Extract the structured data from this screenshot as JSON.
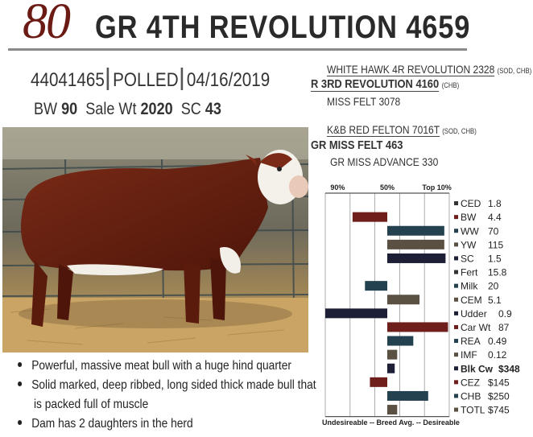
{
  "header": {
    "lot_number": "80",
    "bull_name": "GR  4TH REVOLUTION 4659",
    "registration": "44041465",
    "polled": "POLLED",
    "birth_date": "04/16/2019"
  },
  "stats": {
    "bw_label": "BW",
    "bw_value": "90",
    "sale_wt_label": "Sale Wt",
    "sale_wt_value": "2020",
    "sc_label": "SC",
    "sc_value": "43"
  },
  "pedigree": {
    "sire_sire": "WHITE HAWK 4R REVOLUTION 2328",
    "sire_sire_tags": "(SOD, CHB)",
    "sire": "R 3RD REVOLUTION 4160",
    "sire_tags": "(CHB)",
    "sire_dam": "MISS FELT 3078",
    "dam_sire": "K&B RED FELTON 7016T",
    "dam_sire_tags": "(SOD, CHB)",
    "dam": "GR MISS FELT 463",
    "dam_dam": "GR MISS ADVANCE 330"
  },
  "bullets": [
    "Powerful, massive meat bull with a huge hind quarter",
    "Solid marked, deep ribbed, long sided thick made bull that",
    "is packed full of muscle",
    "Dam has 2 daughters in the herd"
  ],
  "colors": {
    "lot": "#6b1a14",
    "bar_red": "#6e1f1c",
    "bar_teal": "#23414f",
    "bar_olive": "#5a5142",
    "bar_navy": "#1c1f35"
  },
  "chart_data": {
    "type": "bar",
    "orientation": "horizontal",
    "top_labels": [
      "90%",
      "50%",
      "Top 10%"
    ],
    "bottom_label": "Undesireable -- Breed Avg. -- Desireable",
    "grid": true,
    "traits": [
      {
        "name": "CED",
        "value": "1.8",
        "rank": 50,
        "color": "none"
      },
      {
        "name": "BW",
        "value": "4.4",
        "rank": 22,
        "color": "red"
      },
      {
        "name": "WW",
        "value": "70",
        "rank": 96,
        "color": "teal"
      },
      {
        "name": "YW",
        "value": "115",
        "rank": 96,
        "color": "olive"
      },
      {
        "name": "SC",
        "value": "1.5",
        "rank": 97,
        "color": "navy"
      },
      {
        "name": "Fert",
        "value": "15.8",
        "rank": 50,
        "color": "none"
      },
      {
        "name": "Milk",
        "value": "20",
        "rank": 32,
        "color": "teal"
      },
      {
        "name": "CEM",
        "value": "5.1",
        "rank": 76,
        "color": "olive"
      },
      {
        "name": "Udder",
        "value": "0.9",
        "rank": 0,
        "color": "navy"
      },
      {
        "name": "Car Wt",
        "value": "87",
        "rank": 99,
        "color": "red"
      },
      {
        "name": "REA",
        "value": "0.49",
        "rank": 71,
        "color": "teal"
      },
      {
        "name": "IMF",
        "value": "0.12",
        "rank": 58,
        "color": "olive"
      },
      {
        "name": "Blk Cw",
        "value": "$348",
        "rank": 56,
        "color": "navy",
        "bold": true
      },
      {
        "name": "CEZ",
        "value": "$145",
        "rank": 36,
        "color": "red"
      },
      {
        "name": "CHB",
        "value": "$250",
        "rank": 83,
        "color": "teal"
      },
      {
        "name": "TOTL",
        "value": "$745",
        "rank": 58,
        "color": "olive"
      }
    ]
  }
}
